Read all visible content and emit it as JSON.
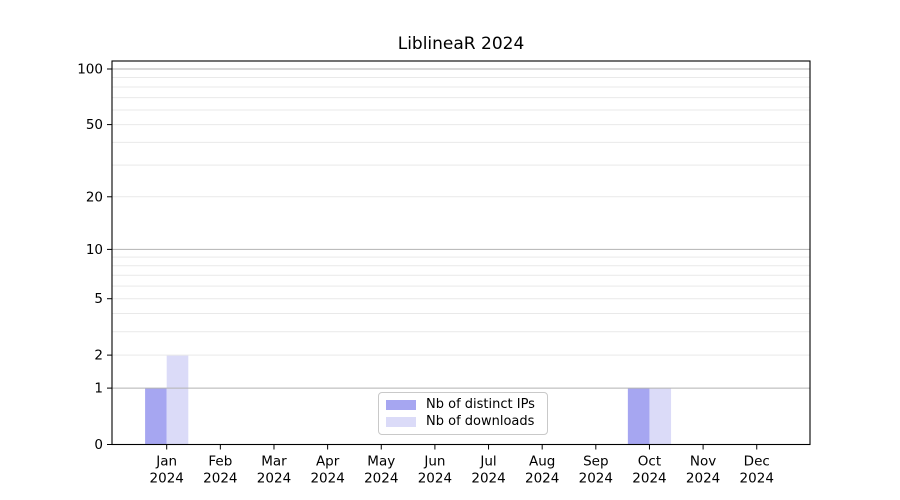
{
  "chart_data": {
    "type": "bar",
    "title": "LiblineaR 2024",
    "xlabel": "",
    "ylabel": "",
    "categories": [
      "Jan",
      "Feb",
      "Mar",
      "Apr",
      "May",
      "Jun",
      "Jul",
      "Aug",
      "Sep",
      "Oct",
      "Nov",
      "Dec"
    ],
    "category_year": "2024",
    "series": [
      {
        "name": "Nb of distinct IPs",
        "color": "#a6a6f1",
        "values": [
          1,
          0,
          0,
          0,
          0,
          0,
          0,
          0,
          0,
          1,
          0,
          0
        ]
      },
      {
        "name": "Nb of downloads",
        "color": "#dbdbf8",
        "values": [
          2,
          0,
          0,
          0,
          0,
          0,
          0,
          0,
          0,
          1,
          0,
          0
        ]
      }
    ],
    "yscale": "log1p",
    "ylim": [
      0,
      110
    ],
    "yticks": [
      0,
      1,
      2,
      5,
      10,
      20,
      50,
      100
    ],
    "grid": "on",
    "grid_major_values": [
      1,
      10,
      100
    ],
    "grid_minor_values": [
      2,
      3,
      4,
      5,
      6,
      7,
      8,
      9,
      20,
      30,
      40,
      50,
      60,
      70,
      80,
      90
    ],
    "legend_position": "lower center",
    "colors": {
      "grid_major": "#b2b2b2",
      "grid_minor": "#e9e9e9",
      "spine": "#000000",
      "background": "#ffffff"
    }
  }
}
